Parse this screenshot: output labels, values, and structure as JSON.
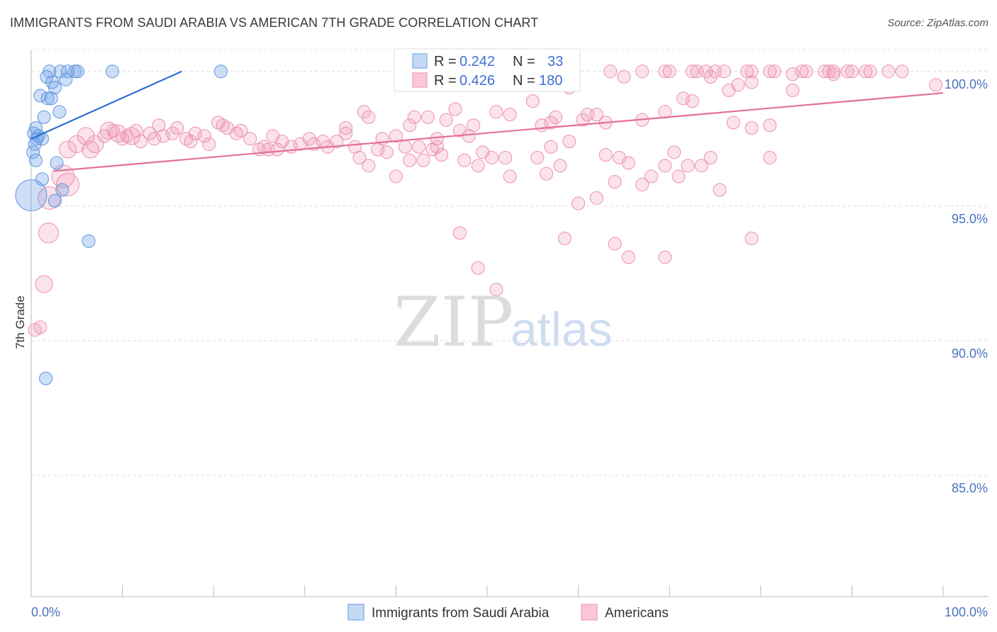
{
  "title": "IMMIGRANTS FROM SAUDI ARABIA VS AMERICAN 7TH GRADE CORRELATION CHART",
  "source": "Source: ZipAtlas.com",
  "watermark": {
    "zip": "ZIP",
    "atlas": "atlas"
  },
  "colors": {
    "blue": "#6fa3e8",
    "blue_line": "#2b6fd4",
    "pink": "#f09ab8",
    "pink_line": "#e4709a",
    "tick_label": "#4a72c0",
    "grid": "#dddddd"
  },
  "chart_data": {
    "type": "scatter",
    "title": "IMMIGRANTS FROM SAUDI ARABIA VS AMERICAN 7TH GRADE CORRELATION CHART",
    "xlabel": "",
    "ylabel": "7th Grade",
    "xlim": [
      0,
      100
    ],
    "ylim": [
      80.5,
      100.6
    ],
    "x_ticks": [
      "0.0%",
      "100.0%"
    ],
    "y_ticks": [
      {
        "value": 100,
        "label": "100.0%"
      },
      {
        "value": 95,
        "label": "95.0%"
      },
      {
        "value": 90,
        "label": "90.0%"
      },
      {
        "value": 85,
        "label": "85.0%"
      }
    ],
    "grid": true,
    "legend_top": [
      {
        "r_label": "R =",
        "r": "0.242",
        "n_label": "N =",
        "n": "33"
      },
      {
        "r_label": "R =",
        "r": "0.426",
        "n_label": "N =",
        "n": "180"
      }
    ],
    "legend_bottom": [
      "Immigrants from Saudi Arabia",
      "Americans"
    ],
    "series": [
      {
        "name": "Immigrants from Saudi Arabia",
        "color": "#6fa3e8",
        "trend": {
          "x": [
            0,
            16.5
          ],
          "y": [
            97.5,
            100.0
          ]
        },
        "points": [
          [
            2.0,
            100,
            9
          ],
          [
            3.2,
            100,
            9
          ],
          [
            4.0,
            100,
            9
          ],
          [
            4.8,
            100,
            9
          ],
          [
            5.1,
            100,
            9
          ],
          [
            8.9,
            100,
            9
          ],
          [
            20.8,
            100,
            9
          ],
          [
            1.7,
            99.8,
            9
          ],
          [
            3.8,
            99.7,
            9
          ],
          [
            2.3,
            99.6,
            9
          ],
          [
            2.6,
            99.4,
            9
          ],
          [
            1.0,
            99.1,
            9
          ],
          [
            1.8,
            99.0,
            9
          ],
          [
            2.2,
            99.0,
            9
          ],
          [
            3.1,
            98.5,
            9
          ],
          [
            1.4,
            98.3,
            9
          ],
          [
            0.5,
            97.9,
            9
          ],
          [
            0.3,
            97.7,
            9
          ],
          [
            0.8,
            97.6,
            9
          ],
          [
            1.2,
            97.5,
            9
          ],
          [
            0.6,
            97.5,
            9
          ],
          [
            0.4,
            97.3,
            9
          ],
          [
            0.2,
            97.0,
            9
          ],
          [
            0.5,
            96.7,
            9
          ],
          [
            2.8,
            96.6,
            9
          ],
          [
            1.2,
            96.0,
            9
          ],
          [
            3.4,
            95.6,
            9
          ],
          [
            0.0,
            95.4,
            22
          ],
          [
            2.6,
            95.2,
            9
          ],
          [
            6.3,
            93.7,
            9
          ],
          [
            1.6,
            88.6,
            9
          ]
        ]
      },
      {
        "name": "Americans",
        "color": "#f09ab8",
        "trend": {
          "x": [
            2.5,
            100
          ],
          "y": [
            96.3,
            99.2
          ]
        },
        "points": [
          [
            59.0,
            100,
            9
          ],
          [
            59.5,
            100,
            9
          ],
          [
            63.5,
            100,
            9
          ],
          [
            67.0,
            100,
            9
          ],
          [
            69.5,
            100,
            9
          ],
          [
            70.0,
            100,
            9
          ],
          [
            72.5,
            100,
            9
          ],
          [
            73.0,
            100,
            9
          ],
          [
            74.0,
            100,
            9
          ],
          [
            75.0,
            100,
            9
          ],
          [
            76.0,
            100,
            9
          ],
          [
            78.5,
            100,
            9
          ],
          [
            79.0,
            100,
            9
          ],
          [
            81.0,
            100,
            9
          ],
          [
            81.5,
            100,
            9
          ],
          [
            84.5,
            100,
            9
          ],
          [
            85.0,
            100,
            9
          ],
          [
            87.0,
            100,
            9
          ],
          [
            87.5,
            100,
            9
          ],
          [
            88.0,
            100,
            9
          ],
          [
            89.5,
            100,
            9
          ],
          [
            90.0,
            100,
            9
          ],
          [
            91.5,
            100,
            9
          ],
          [
            92.0,
            100,
            9
          ],
          [
            94.0,
            100,
            9
          ],
          [
            95.5,
            100,
            9
          ],
          [
            65.0,
            99.8,
            9
          ],
          [
            74.5,
            99.8,
            9
          ],
          [
            83.5,
            99.9,
            9
          ],
          [
            88.0,
            99.9,
            9
          ],
          [
            77.5,
            99.5,
            9
          ],
          [
            79.0,
            99.6,
            9
          ],
          [
            76.5,
            99.3,
            9
          ],
          [
            83.5,
            99.3,
            9
          ],
          [
            99.2,
            99.5,
            9
          ],
          [
            72.5,
            98.9,
            9
          ],
          [
            71.5,
            99.0,
            9
          ],
          [
            53.0,
            99.8,
            9
          ],
          [
            54.0,
            99.7,
            9
          ],
          [
            55.0,
            98.9,
            9
          ],
          [
            59.0,
            99.4,
            9
          ],
          [
            60.5,
            98.2,
            9
          ],
          [
            61.0,
            98.4,
            9
          ],
          [
            46.5,
            98.6,
            9
          ],
          [
            47.0,
            97.8,
            9
          ],
          [
            48.5,
            98.0,
            9
          ],
          [
            51.0,
            98.5,
            9
          ],
          [
            52.5,
            98.4,
            9
          ],
          [
            56.0,
            98.0,
            9
          ],
          [
            57.0,
            98.1,
            9
          ],
          [
            57.5,
            98.3,
            9
          ],
          [
            62.0,
            98.4,
            9
          ],
          [
            40.0,
            97.6,
            9
          ],
          [
            41.5,
            98.0,
            9
          ],
          [
            42.0,
            98.3,
            9
          ],
          [
            43.5,
            98.3,
            9
          ],
          [
            44.5,
            97.5,
            9
          ],
          [
            45.5,
            98.2,
            9
          ],
          [
            36.5,
            98.5,
            9
          ],
          [
            37.0,
            98.3,
            9
          ],
          [
            33.5,
            97.4,
            9
          ],
          [
            34.5,
            97.9,
            9
          ],
          [
            35.5,
            97.2,
            9
          ],
          [
            38.0,
            97.1,
            9
          ],
          [
            39.0,
            97.0,
            9
          ],
          [
            41.0,
            97.2,
            9
          ],
          [
            42.5,
            97.2,
            9
          ],
          [
            43.0,
            96.7,
            9
          ],
          [
            26.5,
            97.6,
            9
          ],
          [
            27.5,
            97.4,
            9
          ],
          [
            28.5,
            97.2,
            9
          ],
          [
            29.5,
            97.3,
            9
          ],
          [
            30.5,
            97.5,
            9
          ],
          [
            31.0,
            97.3,
            9
          ],
          [
            32.0,
            97.4,
            9
          ],
          [
            32.5,
            97.2,
            9
          ],
          [
            20.5,
            98.1,
            9
          ],
          [
            22.5,
            97.7,
            9
          ],
          [
            23.0,
            97.8,
            9
          ],
          [
            24.0,
            97.5,
            9
          ],
          [
            25.0,
            97.1,
            9
          ],
          [
            25.5,
            97.2,
            9
          ],
          [
            26.0,
            97.1,
            9
          ],
          [
            27.0,
            97.1,
            9
          ],
          [
            14.5,
            97.6,
            9
          ],
          [
            15.5,
            97.7,
            9
          ],
          [
            16.0,
            97.9,
            9
          ],
          [
            17.0,
            97.5,
            9
          ],
          [
            17.5,
            97.4,
            9
          ],
          [
            18.0,
            97.7,
            9
          ],
          [
            19.0,
            97.6,
            9
          ],
          [
            19.5,
            97.3,
            9
          ],
          [
            21.0,
            98.0,
            9
          ],
          [
            21.5,
            97.9,
            9
          ],
          [
            8.0,
            97.6,
            9
          ],
          [
            9.0,
            97.8,
            9
          ],
          [
            10.0,
            97.5,
            9
          ],
          [
            10.5,
            97.6,
            9
          ],
          [
            11.5,
            97.8,
            9
          ],
          [
            12.0,
            97.4,
            9
          ],
          [
            13.0,
            97.7,
            9
          ],
          [
            13.5,
            97.5,
            9
          ],
          [
            14.0,
            98.0,
            9
          ],
          [
            4.0,
            97.1,
            12
          ],
          [
            5.0,
            97.3,
            12
          ],
          [
            6.0,
            97.6,
            12
          ],
          [
            6.5,
            97.1,
            12
          ],
          [
            7.0,
            97.3,
            12
          ],
          [
            8.5,
            97.8,
            12
          ],
          [
            9.5,
            97.7,
            12
          ],
          [
            11.0,
            97.6,
            12
          ],
          [
            49.5,
            97.0,
            9
          ],
          [
            50.5,
            96.8,
            9
          ],
          [
            52.0,
            96.8,
            9
          ],
          [
            55.5,
            96.8,
            9
          ],
          [
            57.0,
            97.2,
            9
          ],
          [
            58.0,
            96.5,
            9
          ],
          [
            59.0,
            97.4,
            9
          ],
          [
            63.0,
            96.9,
            9
          ],
          [
            64.5,
            96.8,
            9
          ],
          [
            65.5,
            96.6,
            9
          ],
          [
            68.0,
            96.1,
            9
          ],
          [
            69.5,
            96.5,
            9
          ],
          [
            70.5,
            97.0,
            9
          ],
          [
            72.0,
            96.5,
            9
          ],
          [
            73.5,
            96.5,
            9
          ],
          [
            74.5,
            96.8,
            9
          ],
          [
            36.0,
            96.8,
            9
          ],
          [
            41.5,
            96.7,
            9
          ],
          [
            45.0,
            96.9,
            9
          ],
          [
            47.5,
            96.7,
            9
          ],
          [
            49.0,
            96.5,
            9
          ],
          [
            52.5,
            96.1,
            9
          ],
          [
            56.5,
            96.2,
            9
          ],
          [
            37.0,
            96.5,
            9
          ],
          [
            40.0,
            96.1,
            9
          ],
          [
            44.0,
            97.1,
            9
          ],
          [
            44.5,
            97.2,
            9
          ],
          [
            64.0,
            95.9,
            9
          ],
          [
            67.0,
            95.8,
            9
          ],
          [
            60.0,
            95.1,
            9
          ],
          [
            62.0,
            95.3,
            9
          ],
          [
            71.0,
            96.1,
            9
          ],
          [
            75.5,
            95.6,
            9
          ],
          [
            81.0,
            96.8,
            9
          ],
          [
            47.0,
            94.0,
            9
          ],
          [
            58.5,
            93.8,
            9
          ],
          [
            64.0,
            93.6,
            9
          ],
          [
            65.5,
            93.1,
            9
          ],
          [
            69.5,
            93.1,
            9
          ],
          [
            79.0,
            93.8,
            9
          ],
          [
            49.0,
            92.7,
            9
          ],
          [
            51.0,
            91.9,
            9
          ],
          [
            34.5,
            97.7,
            9
          ],
          [
            38.5,
            97.5,
            9
          ],
          [
            48.0,
            97.6,
            9
          ],
          [
            63.0,
            98.1,
            9
          ],
          [
            67.0,
            98.2,
            9
          ],
          [
            69.5,
            98.5,
            9
          ],
          [
            79.0,
            97.9,
            9
          ],
          [
            77.0,
            98.1,
            9
          ],
          [
            81.0,
            98.0,
            9
          ],
          [
            3.5,
            96.1,
            16
          ],
          [
            4.0,
            95.8,
            16
          ],
          [
            2.0,
            95.3,
            16
          ],
          [
            1.9,
            94.0,
            14
          ],
          [
            1.4,
            92.1,
            12
          ],
          [
            1.0,
            90.5,
            9
          ],
          [
            0.4,
            90.4,
            9
          ]
        ]
      }
    ]
  }
}
